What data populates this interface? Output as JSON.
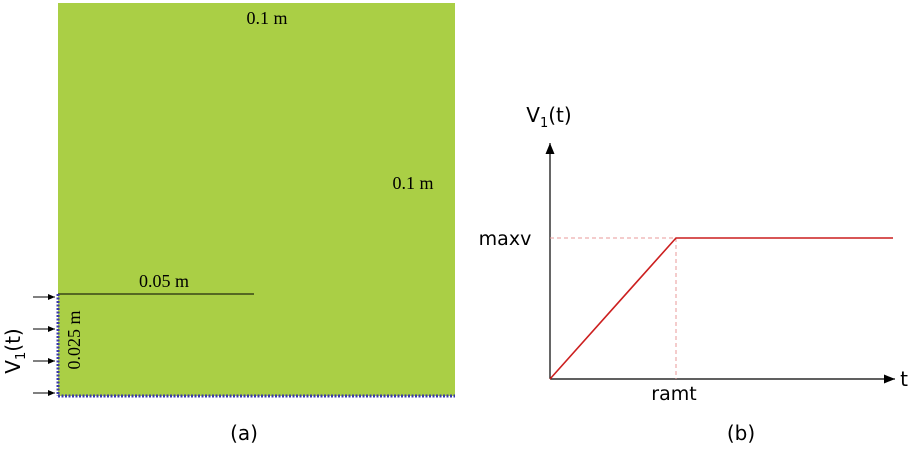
{
  "panel_a": {
    "caption": "(a)",
    "width_label": "0.1 m",
    "height_label": "0.1 m",
    "crack_length_label": "0.05 m",
    "crack_height_label": "0.025 m",
    "load_label": "V",
    "load_subscript": "1",
    "load_suffix": "(t)",
    "domain_color": "#aacf45",
    "boundary_color": "#3a3aa8"
  },
  "panel_b": {
    "caption": "(b)",
    "y_axis_label": "V",
    "y_axis_subscript": "1",
    "y_axis_suffix": "(t)",
    "x_axis_label": "t",
    "y_level_label": "maxv",
    "x_level_label": "ramt",
    "curve_color": "#cc1f1f",
    "guide_color": "#e89a9a"
  }
}
